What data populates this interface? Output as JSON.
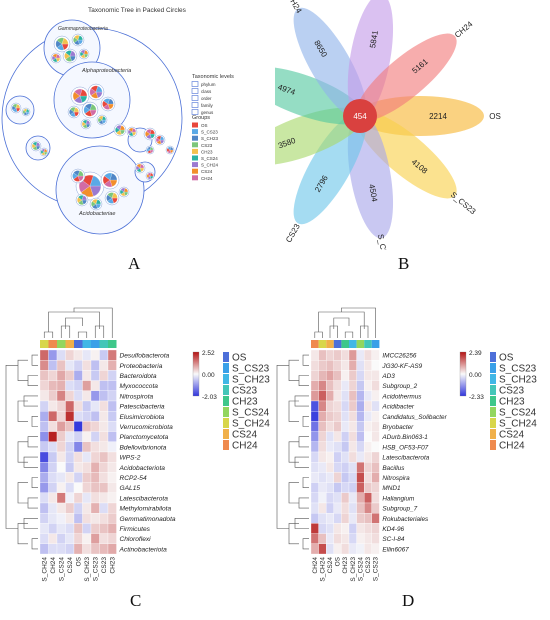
{
  "panels": {
    "a": {
      "letter": "A"
    },
    "b": {
      "letter": "B"
    },
    "c": {
      "letter": "C"
    },
    "d": {
      "letter": "D"
    }
  },
  "packed": {
    "title": "Taxonomic Tree in Packed Circles",
    "labels": {
      "gamma": "Gammaproteobacteria",
      "alpha": "Alphaproteobacteria",
      "acido": "Acidobacteriae"
    },
    "legend": {
      "levels_title": "Taxonomic levels",
      "levels": [
        "phylum",
        "class",
        "order",
        "family",
        "genus"
      ],
      "groups_title": "Groups",
      "groups": [
        "OS",
        "S_CS23",
        "S_CH23",
        "CS23",
        "CH23",
        "S_CS24",
        "S_CH24",
        "CS24",
        "CH24"
      ]
    },
    "colors": {
      "OS": "#e8473c",
      "S_CS23": "#5aa9e6",
      "S_CH23": "#4f86c6",
      "CS23": "#7bc67b",
      "CH23": "#f2c14e",
      "S_CS24": "#2bb3a3",
      "S_CH24": "#9b7ad1",
      "CS24": "#f28e2b",
      "CH24": "#d16ba5"
    }
  },
  "chart_data": [
    {
      "type": "venn-flower",
      "center_value": 454,
      "petals": [
        {
          "name": "OS",
          "value": 2214,
          "color": "#f7b733"
        },
        {
          "name": "S_CS23",
          "value": 4108,
          "color": "#f8d04a"
        },
        {
          "name": "S_CH23",
          "value": 4504,
          "color": "#a8a6ea"
        },
        {
          "name": "CS23",
          "value": 2796,
          "color": "#6ec6ea"
        },
        {
          "name": "CH23",
          "value": 3580,
          "color": "#a8d86a"
        },
        {
          "name": "S_CS24",
          "value": 4974,
          "color": "#54c8a0"
        },
        {
          "name": "S_CH24",
          "value": 8650,
          "color": "#8fb3ea"
        },
        {
          "name": "CS24",
          "value": 5841,
          "color": "#c49be8"
        },
        {
          "name": "CH24",
          "value": 5161,
          "color": "#f27a7a"
        }
      ]
    },
    {
      "type": "heatmap",
      "rows": [
        "Desulfobacterota",
        "Proteobacteria",
        "Bacteroidota",
        "Myxococcota",
        "Nitrospirota",
        "Patescibacteria",
        "Elusimicrobiota",
        "Verrucomicrobiota",
        "Planctomycetota",
        "Bdellovibrionota",
        "WPS-2",
        "Acidobacteriota",
        "RCP2-54",
        "GAL15",
        "Latescibacterota",
        "Methylomirabilota",
        "Gemmatimonadota",
        "Firmicutes",
        "Chloroflexi",
        "Actinobacteriota"
      ],
      "columns": [
        "S_CH24",
        "CH24",
        "S_CS24",
        "CS24",
        "OS",
        "S_CH23",
        "S_CS23",
        "CS23",
        "CH23"
      ],
      "column_groups": [
        "S_CH24",
        "CH24",
        "S_CS24",
        "CS24",
        "OS",
        "S_CH23",
        "S_CS23",
        "CS23",
        "CH23"
      ],
      "values": [
        [
          1.6,
          -1.0,
          -0.3,
          0.4,
          0.2,
          -0.2,
          0.1,
          -0.5,
          1.4
        ],
        [
          1.2,
          -0.6,
          0.6,
          -0.2,
          -0.4,
          0.3,
          -0.6,
          0.2,
          0.8
        ],
        [
          0.6,
          0.4,
          0.9,
          0.5,
          -0.8,
          0.2,
          -0.5,
          0.4,
          -0.4
        ],
        [
          0.4,
          0.7,
          0.8,
          -0.3,
          -0.4,
          1.0,
          0.2,
          -0.6,
          -0.6
        ],
        [
          0.2,
          0.5,
          1.3,
          0.4,
          -0.3,
          0.2,
          -1.0,
          -0.6,
          -0.4
        ],
        [
          -0.4,
          0.2,
          0.4,
          1.6,
          0.3,
          -0.5,
          -0.2,
          0.3,
          -0.6
        ],
        [
          -0.8,
          1.6,
          0.4,
          2.2,
          -0.3,
          -0.4,
          -0.6,
          0.2,
          -0.5
        ],
        [
          -0.6,
          0.3,
          1.0,
          0.6,
          -2.0,
          0.6,
          0.4,
          0.2,
          -0.3
        ],
        [
          -1.1,
          2.4,
          0.5,
          -0.2,
          -0.4,
          0.1,
          -0.4,
          0.3,
          -0.6
        ],
        [
          -0.5,
          -0.3,
          0.4,
          -0.4,
          -1.2,
          0.6,
          0.3,
          0.2,
          -0.1
        ],
        [
          -1.8,
          -0.5,
          0.2,
          -0.4,
          0.3,
          -0.2,
          0.4,
          0.6,
          0.3
        ],
        [
          -1.2,
          -0.4,
          0.0,
          -0.5,
          0.2,
          0.3,
          0.8,
          0.4,
          0.2
        ],
        [
          -0.8,
          -0.3,
          -0.2,
          0.2,
          -0.4,
          0.5,
          0.7,
          0.3,
          0.1
        ],
        [
          -1.0,
          -0.4,
          0.1,
          -0.3,
          0.0,
          0.4,
          0.6,
          0.6,
          0.2
        ],
        [
          -0.3,
          0.2,
          1.4,
          -0.1,
          0.4,
          -0.2,
          0.3,
          0.2,
          0.1
        ],
        [
          -0.6,
          -0.2,
          0.2,
          0.5,
          -0.4,
          0.2,
          0.8,
          -0.3,
          0.4
        ],
        [
          -0.4,
          -0.2,
          -0.1,
          0.2,
          -0.6,
          0.3,
          0.2,
          0.3,
          0.5
        ],
        [
          -0.2,
          -0.4,
          -0.2,
          -0.3,
          0.6,
          -0.4,
          0.5,
          0.6,
          0.8
        ],
        [
          -0.3,
          0.2,
          -0.4,
          -0.2,
          0.4,
          0.1,
          1.0,
          0.3,
          0.4
        ],
        [
          -0.6,
          -0.3,
          -0.3,
          -0.4,
          0.8,
          0.3,
          0.6,
          0.7,
          0.9
        ]
      ],
      "scale_min": -2.03,
      "scale_mid": 0.0,
      "scale_max": 2.52,
      "scale_labels": [
        "2.52",
        "0.00",
        "-2.03"
      ],
      "legend": [
        "OS",
        "S_CS23",
        "S_CH23",
        "CS23",
        "CH23",
        "S_CS24",
        "S_CH24",
        "CS24",
        "CH24"
      ]
    },
    {
      "type": "heatmap",
      "rows": [
        "IMCC26256",
        "JG30-KF-AS9",
        "AD3",
        "Subgroup_2",
        "Acidothermus",
        "Acidibacter",
        "Candidatus_Solibacter",
        "Bryobacter",
        "ADurb.Bin063-1",
        "HSB_OF53-F07",
        "Latescibacterota",
        "Bacillus",
        "Nitrospira",
        "MND1",
        "Haliangium",
        "Subgroup_7",
        "Rokubacteriales",
        "KD4-96",
        "SC-I-84",
        "Ellin6067"
      ],
      "columns": [
        "CH24",
        "S_CH24",
        "CS24",
        "OS",
        "CH23",
        "S_CH23",
        "S_CS24",
        "CS23",
        "S_CS23"
      ],
      "column_groups": [
        "CH24",
        "S_CH24",
        "CS24",
        "OS",
        "CH23",
        "S_CH23",
        "S_CS24",
        "CS23",
        "S_CS23"
      ],
      "values": [
        [
          0.2,
          0.6,
          0.4,
          0.5,
          0.3,
          1.0,
          -0.2,
          0.3,
          0.1
        ],
        [
          0.3,
          0.5,
          0.6,
          0.4,
          0.2,
          0.8,
          -0.3,
          0.2,
          0.0
        ],
        [
          0.4,
          0.7,
          0.9,
          0.6,
          0.1,
          0.5,
          -0.4,
          0.2,
          0.2
        ],
        [
          0.8,
          1.2,
          0.6,
          0.3,
          -0.2,
          0.4,
          -0.6,
          0.1,
          0.3
        ],
        [
          1.0,
          1.6,
          0.8,
          0.2,
          -0.3,
          0.6,
          -0.8,
          -0.2,
          0.1
        ],
        [
          -2.0,
          1.2,
          0.4,
          0.3,
          -0.4,
          0.5,
          -0.9,
          0.2,
          -0.3
        ],
        [
          -2.2,
          0.8,
          0.5,
          0.4,
          -0.3,
          0.3,
          -0.8,
          -0.2,
          0.1
        ],
        [
          -1.6,
          0.6,
          0.3,
          0.5,
          -0.2,
          0.2,
          -0.6,
          0.1,
          0.2
        ],
        [
          -1.2,
          0.4,
          -0.3,
          0.2,
          -0.5,
          0.3,
          -0.7,
          0.0,
          0.2
        ],
        [
          -0.8,
          0.3,
          -0.2,
          -0.3,
          -0.6,
          0.2,
          -0.4,
          0.1,
          0.0
        ],
        [
          -0.4,
          0.2,
          0.1,
          -0.5,
          -0.3,
          0.3,
          -0.2,
          0.2,
          0.4
        ],
        [
          -0.3,
          -0.2,
          0.2,
          -0.4,
          -0.5,
          -0.3,
          1.4,
          0.4,
          0.6
        ],
        [
          -0.2,
          -0.3,
          -0.2,
          0.4,
          -0.6,
          -0.4,
          1.8,
          0.3,
          0.8
        ],
        [
          -0.5,
          -0.2,
          -0.3,
          -0.6,
          -0.4,
          -0.5,
          1.6,
          0.5,
          0.4
        ],
        [
          -0.4,
          -0.1,
          -0.4,
          -0.3,
          0.5,
          -0.2,
          0.8,
          1.6,
          0.3
        ],
        [
          -0.3,
          0.2,
          -0.5,
          -0.2,
          0.3,
          -0.3,
          0.6,
          1.2,
          0.5
        ],
        [
          -0.6,
          -0.3,
          -0.2,
          -0.4,
          0.4,
          -0.2,
          0.5,
          0.6,
          1.4
        ],
        [
          2.0,
          -0.4,
          -0.3,
          0.2,
          0.1,
          -0.5,
          0.2,
          0.3,
          0.4
        ],
        [
          1.4,
          0.6,
          -0.2,
          0.3,
          0.2,
          -0.4,
          0.1,
          0.2,
          0.3
        ],
        [
          0.8,
          1.8,
          -0.3,
          0.1,
          0.3,
          -0.2,
          -0.1,
          0.2,
          0.1
        ]
      ],
      "scale_min": -2.33,
      "scale_mid": 0.0,
      "scale_max": 2.39,
      "scale_labels": [
        "2.39",
        "0.00",
        "-2.33"
      ],
      "legend": [
        "OS",
        "S_CS23",
        "S_CH23",
        "CS23",
        "CH23",
        "S_CS24",
        "S_CH24",
        "CS24",
        "CH24"
      ]
    }
  ],
  "heat_legend_colors": {
    "OS": "#4d6fd9",
    "S_CS23": "#3aa0e8",
    "S_CH23": "#41b7e6",
    "CS23": "#44c6b8",
    "CH23": "#3ec78a",
    "S_CS24": "#93d65e",
    "S_CH24": "#d8d64a",
    "CS24": "#f0b04a",
    "CH24": "#ef8a4e"
  }
}
